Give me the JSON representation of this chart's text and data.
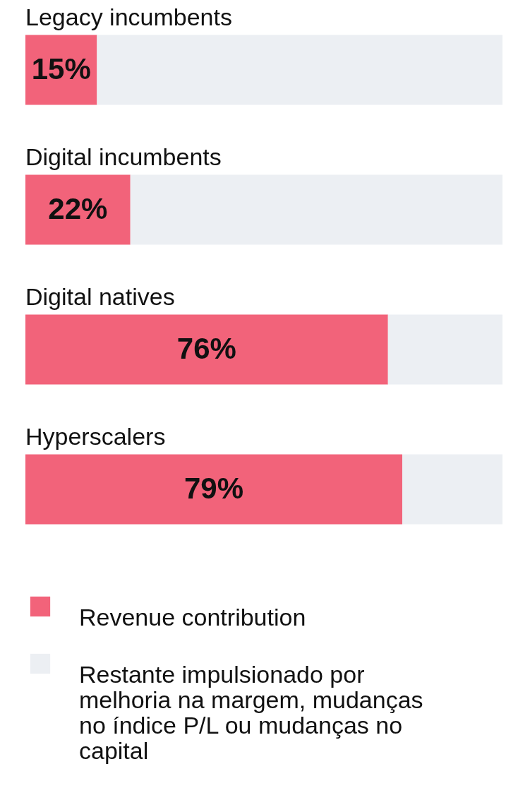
{
  "chart_data": {
    "type": "bar",
    "orientation": "horizontal",
    "stacked": true,
    "legend": "bottom",
    "xlim": [
      0,
      100
    ],
    "categories": [
      "Legacy incumbents",
      "Digital incumbents",
      "Digital natives",
      "Hyperscalers"
    ],
    "series": [
      {
        "name": "Revenue contribution",
        "color": "#f2637a",
        "values": [
          15,
          22,
          76,
          79
        ],
        "value_labels": [
          "15%",
          "22%",
          "76%",
          "79%"
        ]
      },
      {
        "name": "Restante impulsionado por melhoria na margem, mudanças no índice P/L ou mudanças no capital",
        "color": "#eceff3",
        "values": [
          85,
          78,
          24,
          21
        ]
      }
    ]
  }
}
